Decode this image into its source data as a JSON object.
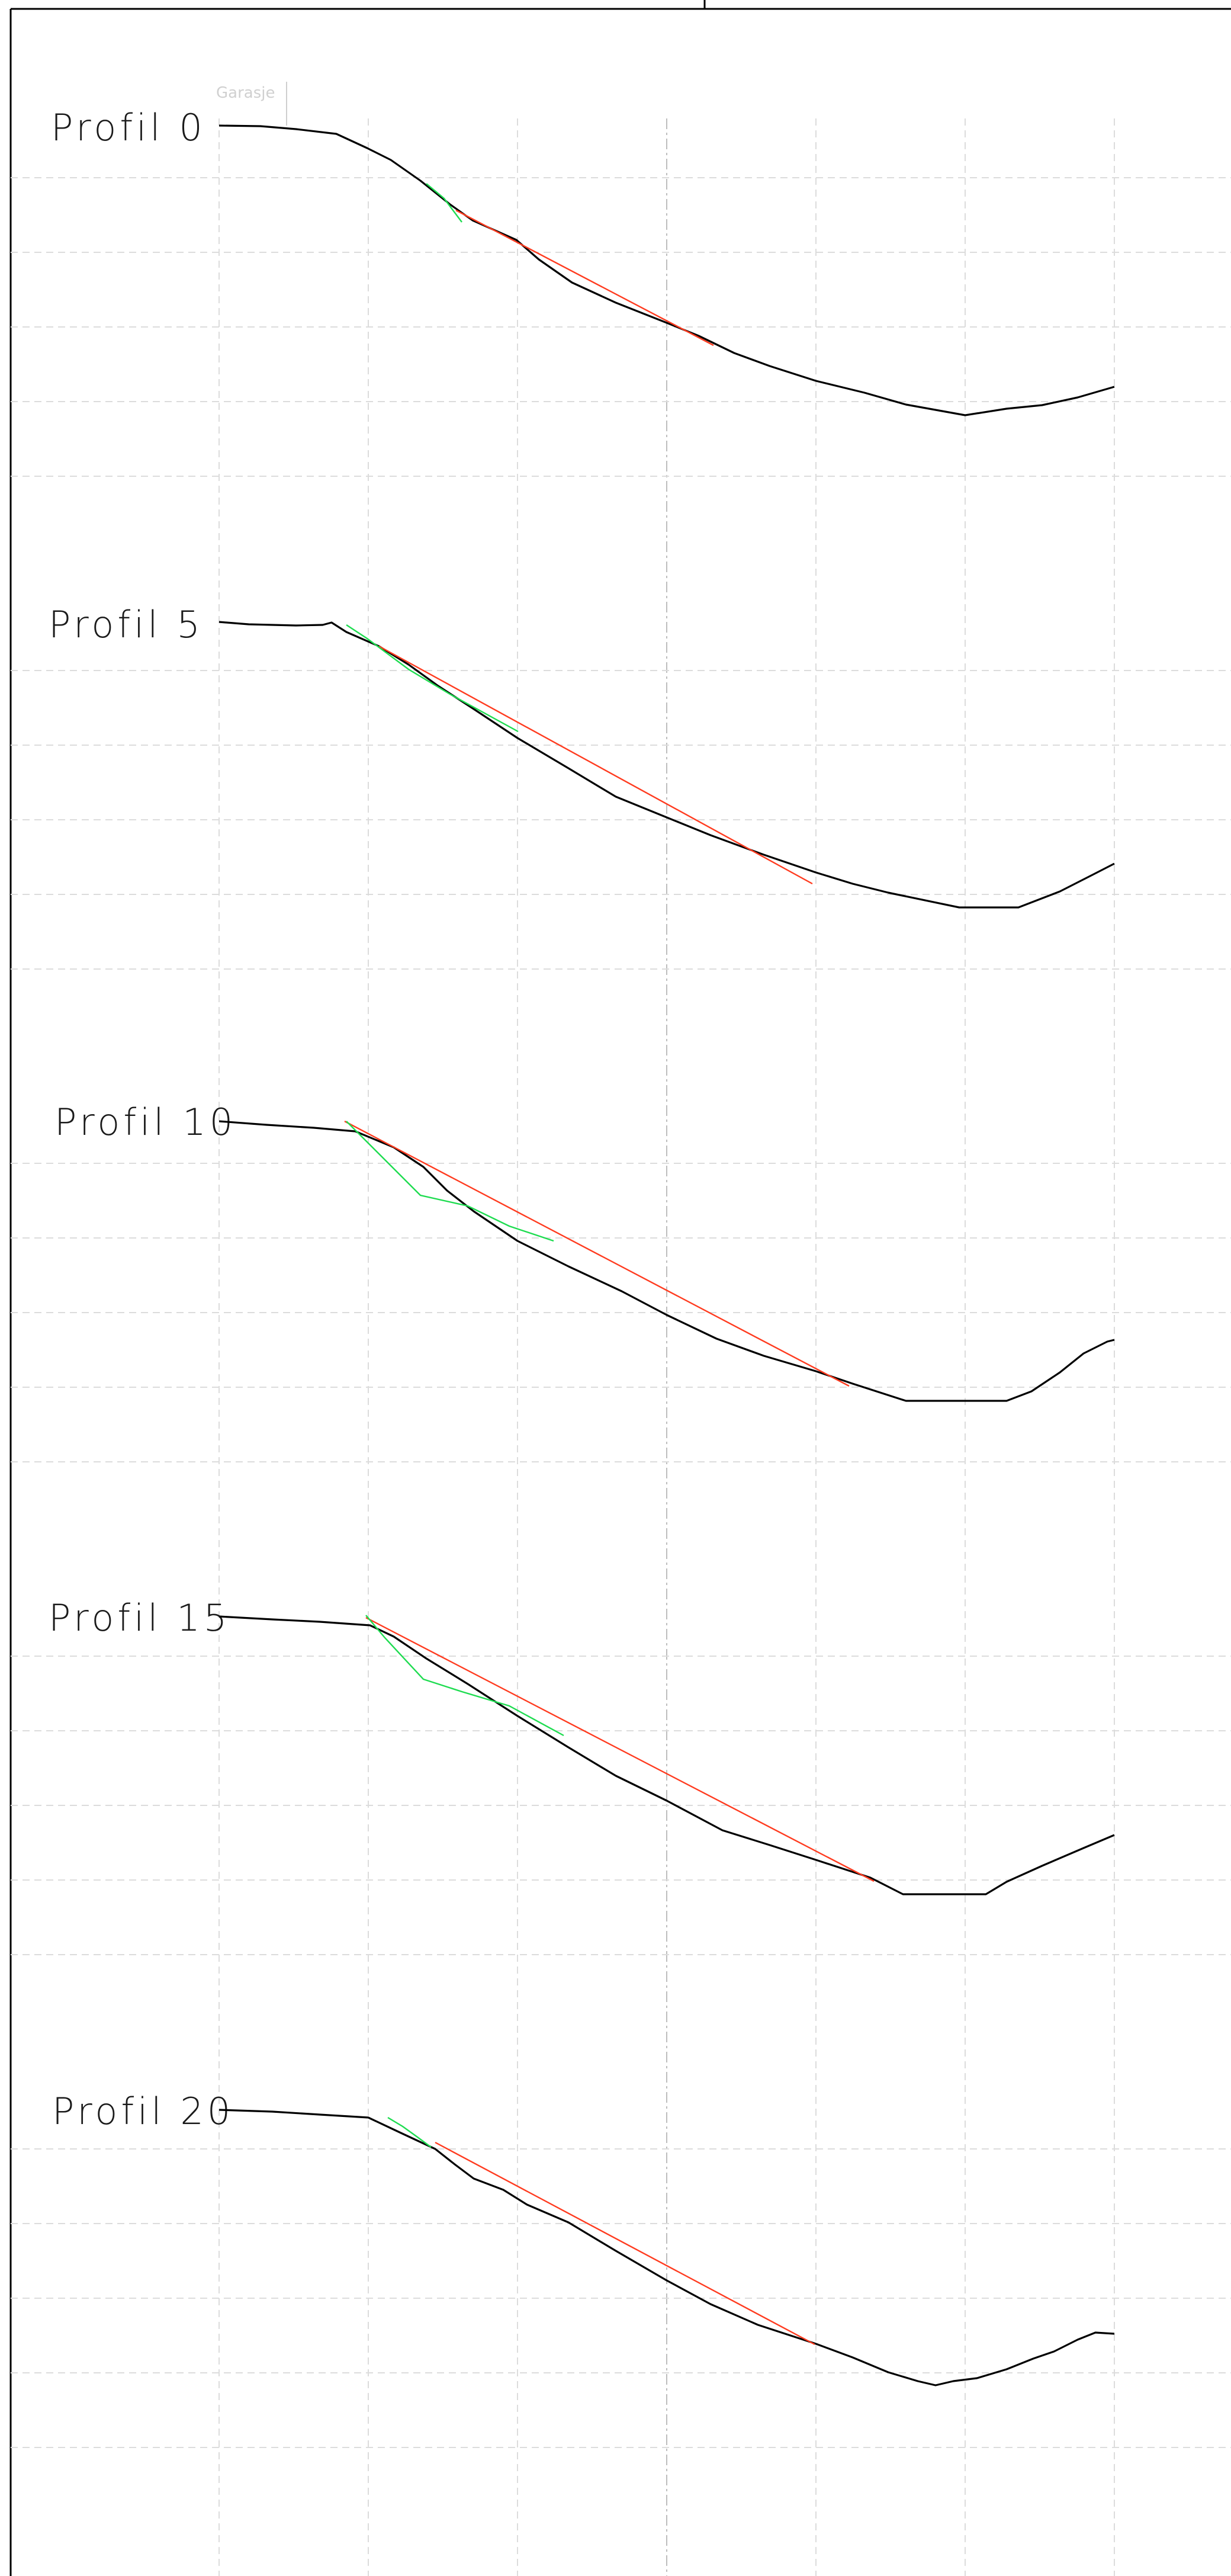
{
  "drawing": {
    "top_label": "Garasje",
    "colors": {
      "terrain": "#000000",
      "cut_line": "#ff3b1f",
      "alt_line": "#1edc50",
      "grid": "#dcdcdc"
    }
  },
  "profiles": [
    {
      "id": "p0",
      "label": "Profil 0"
    },
    {
      "id": "p5",
      "label": "Profil 5"
    },
    {
      "id": "p10",
      "label": "Profil 10"
    },
    {
      "id": "p15",
      "label": "Profil 15"
    },
    {
      "id": "p20",
      "label": "Profil 20"
    }
  ]
}
